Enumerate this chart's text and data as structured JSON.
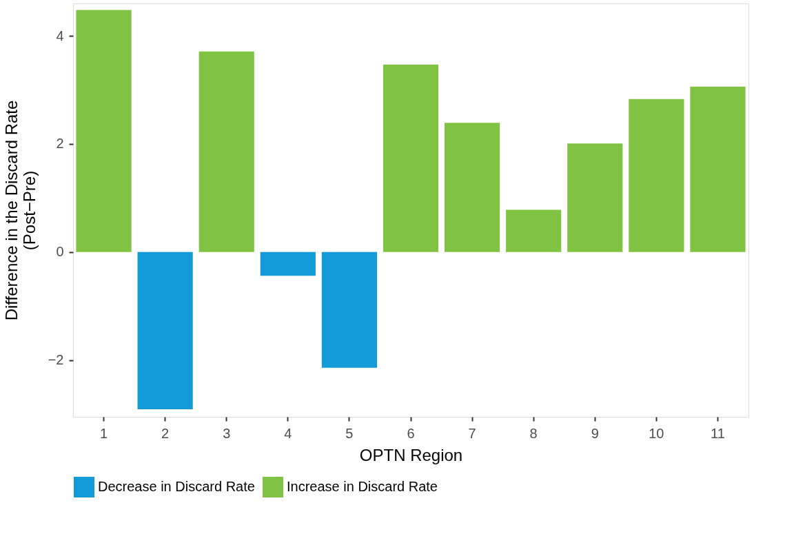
{
  "chart_data": {
    "type": "bar",
    "xlabel": "OPTN Region",
    "ylabel": "Difference in the Discard Rate\n(Post−Pre)",
    "categories": [
      "1",
      "2",
      "3",
      "4",
      "5",
      "6",
      "7",
      "8",
      "9",
      "10",
      "11"
    ],
    "series": [
      {
        "name": "Decrease in Discard Rate",
        "color": "#129bd7",
        "values": [
          null,
          -2.91,
          null,
          -0.44,
          -2.14,
          null,
          null,
          null,
          null,
          null,
          null
        ]
      },
      {
        "name": "Increase in Discard Rate",
        "color": "#80c342",
        "values": [
          4.48,
          null,
          3.71,
          null,
          null,
          3.47,
          2.39,
          0.78,
          2.01,
          2.83,
          3.06
        ]
      }
    ],
    "ylim": [
      -3.05,
      4.6
    ],
    "yticks": [
      {
        "value": -2,
        "label": "−2"
      },
      0,
      2,
      4
    ],
    "grid": false,
    "legend": "bottom"
  }
}
